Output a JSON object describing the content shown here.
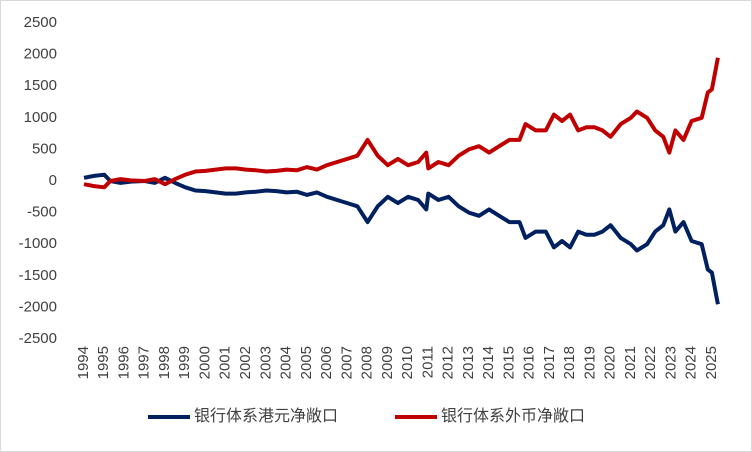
{
  "chart_data": {
    "type": "line",
    "x": [
      1994.0,
      1994.5,
      1995.0,
      1995.3,
      1995.8,
      1996.3,
      1997.0,
      1997.5,
      1998.0,
      1998.5,
      1999.0,
      1999.5,
      2000.0,
      2000.5,
      2001.0,
      2001.5,
      2002.0,
      2002.5,
      2003.0,
      2003.5,
      2004.0,
      2004.5,
      2005.0,
      2005.5,
      2006.0,
      2006.5,
      2007.0,
      2007.5,
      2008.0,
      2008.5,
      2009.0,
      2009.5,
      2010.0,
      2010.5,
      2010.9,
      2011.0,
      2011.5,
      2012.0,
      2012.5,
      2013.0,
      2013.5,
      2014.0,
      2014.5,
      2015.0,
      2015.5,
      2015.8,
      2016.3,
      2016.8,
      2017.2,
      2017.6,
      2018.0,
      2018.4,
      2018.8,
      2019.2,
      2019.6,
      2020.0,
      2020.5,
      2021.0,
      2021.3,
      2021.8,
      2022.2,
      2022.6,
      2022.9,
      2023.2,
      2023.6,
      2024.0,
      2024.5,
      2024.8,
      2025.0,
      2025.3
    ],
    "series": [
      {
        "name": "银行体系港元净敞口",
        "color": "#002060",
        "values": [
          50,
          80,
          100,
          0,
          -30,
          -10,
          0,
          -30,
          50,
          -30,
          -100,
          -150,
          -160,
          -180,
          -200,
          -200,
          -180,
          -170,
          -150,
          -160,
          -180,
          -170,
          -220,
          -180,
          -250,
          -300,
          -350,
          -400,
          -650,
          -400,
          -250,
          -350,
          -250,
          -300,
          -450,
          -200,
          -300,
          -250,
          -400,
          -500,
          -550,
          -450,
          -550,
          -650,
          -650,
          -900,
          -800,
          -800,
          -1050,
          -950,
          -1050,
          -800,
          -850,
          -850,
          -800,
          -700,
          -900,
          -1000,
          -1100,
          -1000,
          -800,
          -700,
          -450,
          -800,
          -650,
          -950,
          -1000,
          -1400,
          -1450,
          -1950
        ]
      },
      {
        "name": "银行体系外币净敞口",
        "color": "#c00000",
        "values": [
          -50,
          -80,
          -100,
          0,
          30,
          10,
          0,
          30,
          -50,
          30,
          100,
          150,
          160,
          180,
          200,
          200,
          180,
          170,
          150,
          160,
          180,
          170,
          220,
          180,
          250,
          300,
          350,
          400,
          650,
          400,
          250,
          350,
          250,
          300,
          450,
          200,
          300,
          250,
          400,
          500,
          550,
          450,
          550,
          650,
          650,
          900,
          800,
          800,
          1050,
          950,
          1050,
          800,
          850,
          850,
          800,
          700,
          900,
          1000,
          1100,
          1000,
          800,
          700,
          450,
          800,
          650,
          950,
          1000,
          1400,
          1450,
          1950
        ]
      }
    ],
    "xlim": [
      1994,
      2025.5
    ],
    "xticks": [
      1994,
      1995,
      1996,
      1997,
      1998,
      1999,
      2000,
      2001,
      2002,
      2003,
      2004,
      2005,
      2006,
      2007,
      2008,
      2009,
      2010,
      2011,
      2012,
      2013,
      2014,
      2015,
      2016,
      2017,
      2018,
      2019,
      2020,
      2021,
      2022,
      2023,
      2024,
      2025
    ],
    "ylim": [
      -2500,
      2500
    ],
    "yticks": [
      -2500,
      -2000,
      -1500,
      -1000,
      -500,
      0,
      500,
      1000,
      1500,
      2000,
      2500
    ],
    "legend": "bottom"
  }
}
